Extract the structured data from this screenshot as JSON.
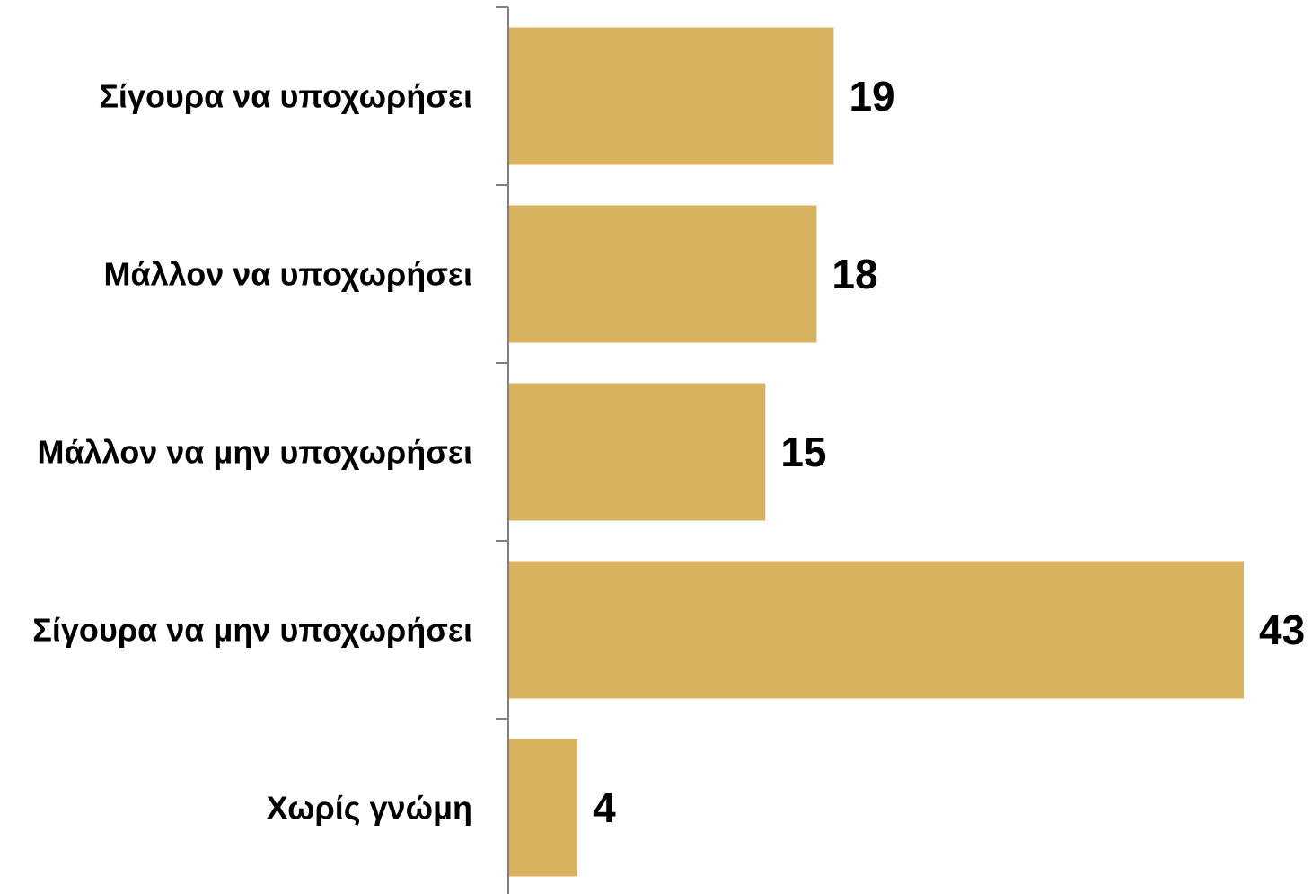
{
  "chart_data": {
    "type": "bar",
    "orientation": "horizontal",
    "categories": [
      "Σίγουρα να υποχωρήσει",
      "Μάλλον να υποχωρήσει",
      "Μάλλον να μην υποχωρήσει",
      "Σίγουρα να μην υποχωρήσει",
      "Χωρίς γνώμη"
    ],
    "values": [
      19,
      18,
      15,
      43,
      4
    ],
    "value_labels": [
      "19",
      "18",
      "15",
      "43",
      "4"
    ],
    "xlim": [
      0,
      43
    ],
    "grid": false,
    "legend": "none",
    "bar_color": "#D7B25F",
    "axis_color": "#808080"
  }
}
